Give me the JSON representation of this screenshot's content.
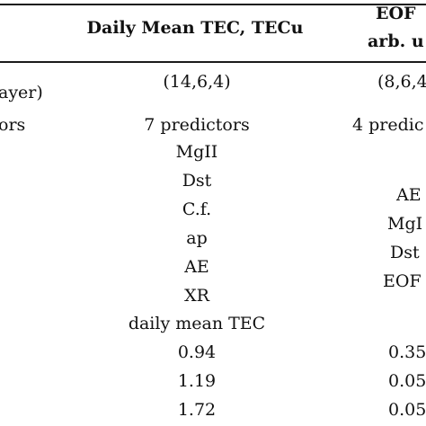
{
  "table": {
    "headers": {
      "col2": "Daily Mean TEC, TECu",
      "col3_line1": "EOF",
      "col3_line2": "arb. u"
    },
    "row_labels": {
      "architecture": "ayer)",
      "predictors": "ors"
    },
    "col2": {
      "architecture": "(14,6,4)",
      "num_predictors": "7 predictors",
      "predictors": [
        "MgII",
        "Dst",
        "C.f.",
        "ap",
        "AE",
        "XR",
        "daily mean TEC"
      ],
      "metrics": [
        "0.94",
        "1.19",
        "1.72"
      ]
    },
    "col3": {
      "architecture": "(8,6,4",
      "num_predictors": "4 predic",
      "predictors": [
        "AE",
        "MgI",
        "Dst",
        "EOF"
      ],
      "metrics": [
        "0.35",
        "0.05",
        "0.05"
      ]
    }
  }
}
